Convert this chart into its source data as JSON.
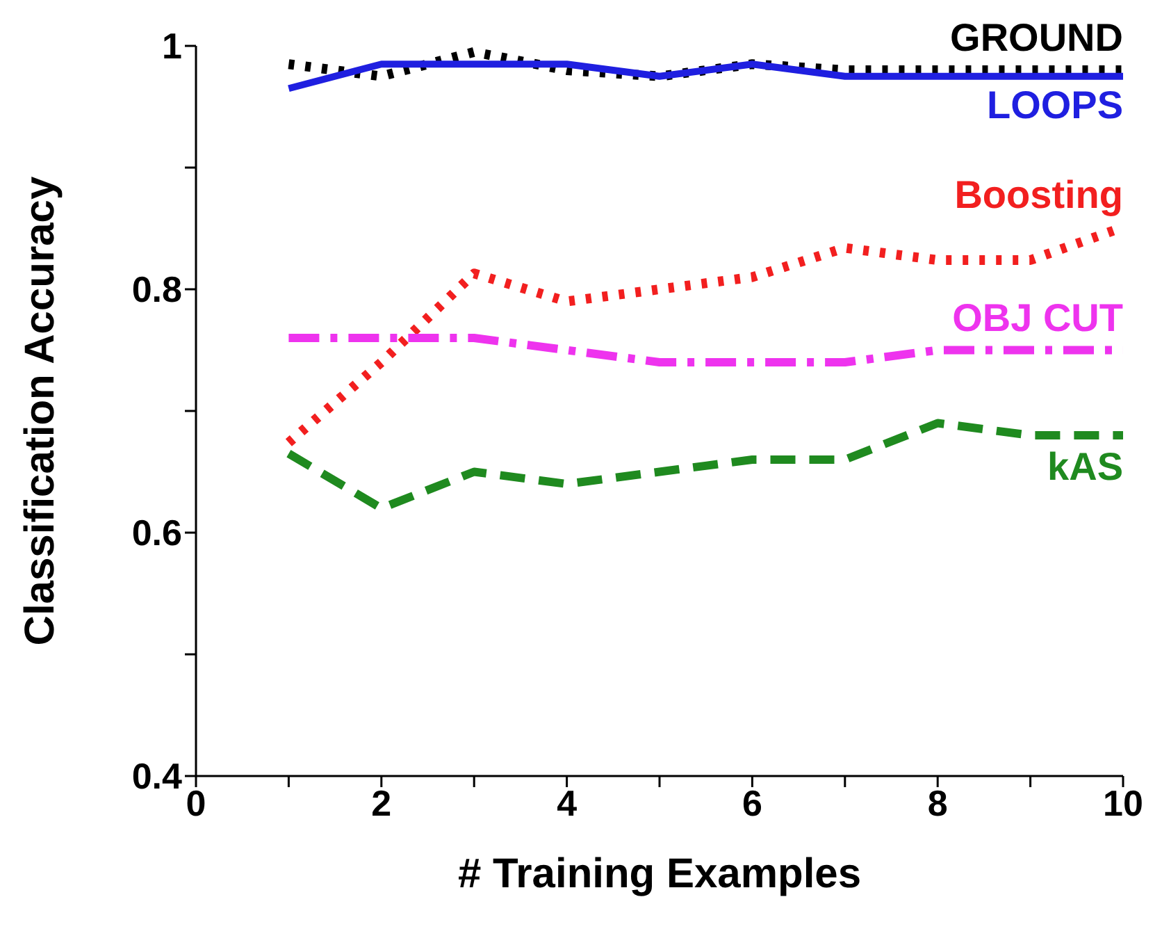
{
  "chart_data": {
    "type": "line",
    "xlabel": "# Training Examples",
    "ylabel": "Classification Accuracy",
    "x": [
      1,
      2,
      3,
      4,
      5,
      6,
      7,
      8,
      9,
      10
    ],
    "xlim": [
      0,
      10
    ],
    "xticks": [
      0,
      {
        "value": 1,
        "label": null
      },
      2,
      {
        "value": 3,
        "label": null
      },
      4,
      {
        "value": 5,
        "label": null
      },
      6,
      {
        "value": 7,
        "label": null
      },
      8,
      {
        "value": 9,
        "label": null
      },
      10
    ],
    "ylim": [
      0.4,
      1
    ],
    "yticks": [
      0.4,
      {
        "value": 0.5,
        "label": null
      },
      0.6,
      {
        "value": 0.7,
        "label": null
      },
      0.8,
      {
        "value": 0.9,
        "label": null
      },
      1
    ],
    "grid": false,
    "legend": false,
    "marker": "none",
    "series": [
      {
        "name": "GROUND",
        "color": "#000000",
        "line_style": "dotted",
        "values": [
          0.985,
          0.975,
          0.995,
          0.98,
          0.975,
          0.985,
          0.98,
          0.98,
          0.98,
          0.98
        ]
      },
      {
        "name": "LOOPS",
        "color": "#1f1fe0",
        "line_style": "solid",
        "values": [
          0.965,
          0.985,
          0.985,
          0.985,
          0.975,
          0.985,
          0.975,
          0.975,
          0.975,
          0.975
        ]
      },
      {
        "name": "Boosting",
        "color": "#f21f1f",
        "line_style": "dotted",
        "values": [
          0.674,
          0.74,
          0.813,
          0.79,
          0.8,
          0.81,
          0.834,
          0.824,
          0.824,
          0.851
        ]
      },
      {
        "name": "OBJ CUT",
        "color": "#ee33ee",
        "line_style": "dashdot",
        "values": [
          0.76,
          0.76,
          0.76,
          0.75,
          0.74,
          0.74,
          0.74,
          0.75,
          0.75,
          0.75
        ]
      },
      {
        "name": "kAS",
        "color": "#1f8a1f",
        "line_style": "dashed",
        "values": [
          0.665,
          0.62,
          0.65,
          0.64,
          0.65,
          0.66,
          0.66,
          0.69,
          0.68,
          0.68
        ]
      }
    ]
  }
}
